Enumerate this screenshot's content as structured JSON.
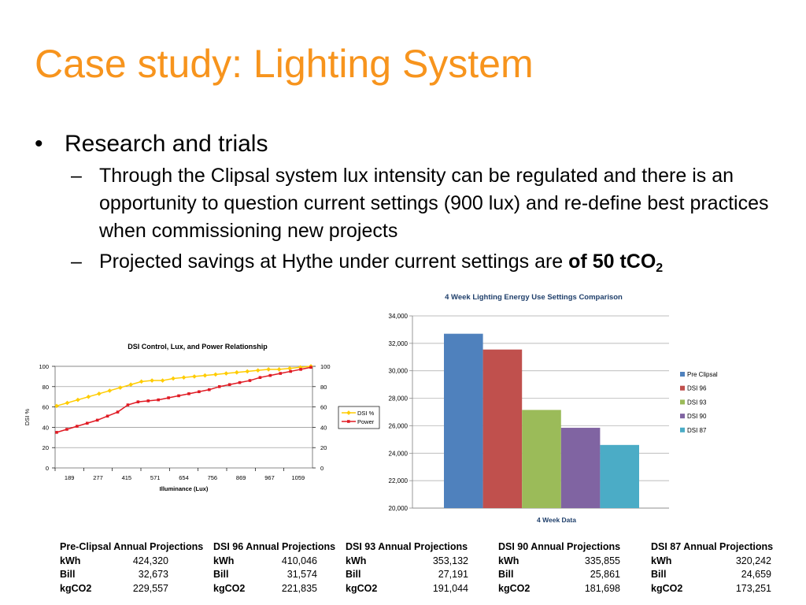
{
  "slide": {
    "title": "Case study: Lighting System",
    "bullet1": "Research and trials",
    "sub1": "Through the Clipsal system lux intensity can be regulated and there is an opportunity to question current settings (900 lux) and re-define best practices when commissioning new projects",
    "sub2_text": "Projected savings at Hythe under current settings are ",
    "sub2_bold": "of 50 tCO",
    "sub2_subscript": "2"
  },
  "chart_data": [
    {
      "type": "line",
      "title": "DSI Control, Lux, and Power Relationship",
      "xlabel": "Illuminance (Lux)",
      "ylabel": "DSI %",
      "x_tick_labels": [
        "189",
        "277",
        "415",
        "571",
        "654",
        "756",
        "869",
        "967",
        "1059"
      ],
      "ylim": [
        0,
        100
      ],
      "y_ticks": [
        "0",
        "20",
        "40",
        "60",
        "80",
        "100"
      ],
      "series": [
        {
          "name": "DSI %",
          "color": "#ffcc00",
          "values": [
            61,
            64,
            67,
            70,
            73,
            76,
            79,
            82,
            85,
            86,
            86,
            88,
            89,
            90,
            91,
            92,
            93,
            94,
            95,
            96,
            97,
            97,
            98,
            99,
            100
          ]
        },
        {
          "name": "Power",
          "color": "#e01b24",
          "values": [
            35,
            38,
            41,
            44,
            47,
            51,
            55,
            62,
            65,
            66,
            67,
            69,
            71,
            73,
            75,
            77,
            80,
            82,
            84,
            86,
            89,
            91,
            93,
            95,
            97,
            99
          ]
        }
      ]
    },
    {
      "type": "bar",
      "title": "4 Week Lighting Energy Use  Settings Comparison",
      "xlabel": "4 Week Data",
      "categories": [
        "Pre Clipsal",
        "DSI 96",
        "DSI 93",
        "DSI 90",
        "DSI 87"
      ],
      "values": [
        32700,
        31550,
        27150,
        25850,
        24600
      ],
      "colors": [
        "#4f81bd",
        "#c0504d",
        "#9bbb59",
        "#8064a2",
        "#4bacc6"
      ],
      "ylim": [
        20000,
        34000
      ],
      "y_ticks": [
        "20,000",
        "22,000",
        "24,000",
        "26,000",
        "28,000",
        "30,000",
        "32,000",
        "34,000"
      ]
    }
  ],
  "projections": [
    {
      "header": "Pre-Clipsal Annual Projections",
      "rows": [
        [
          "kWh",
          "424,320"
        ],
        [
          "Bill",
          "32,673"
        ],
        [
          "kgCO2",
          "229,557"
        ]
      ]
    },
    {
      "header": "DSI 96 Annual Projections",
      "rows": [
        [
          "kWh",
          "410,046"
        ],
        [
          "Bill",
          "31,574"
        ],
        [
          "kgCO2",
          "221,835"
        ]
      ]
    },
    {
      "header": "DSI 93 Annual Projections",
      "rows": [
        [
          "kWh",
          "353,132"
        ],
        [
          "Bill",
          "27,191"
        ],
        [
          "kgCO2",
          "191,044"
        ]
      ]
    },
    {
      "header": "DSI 90 Annual Projections",
      "rows": [
        [
          "kWh",
          "335,855"
        ],
        [
          "Bill",
          "25,861"
        ],
        [
          "kgCO2",
          "181,698"
        ]
      ]
    },
    {
      "header": "DSI 87 Annual Projections",
      "rows": [
        [
          "kWh",
          "320,242"
        ],
        [
          "Bill",
          "24,659"
        ],
        [
          "kgCO2",
          "173,251"
        ]
      ]
    }
  ]
}
